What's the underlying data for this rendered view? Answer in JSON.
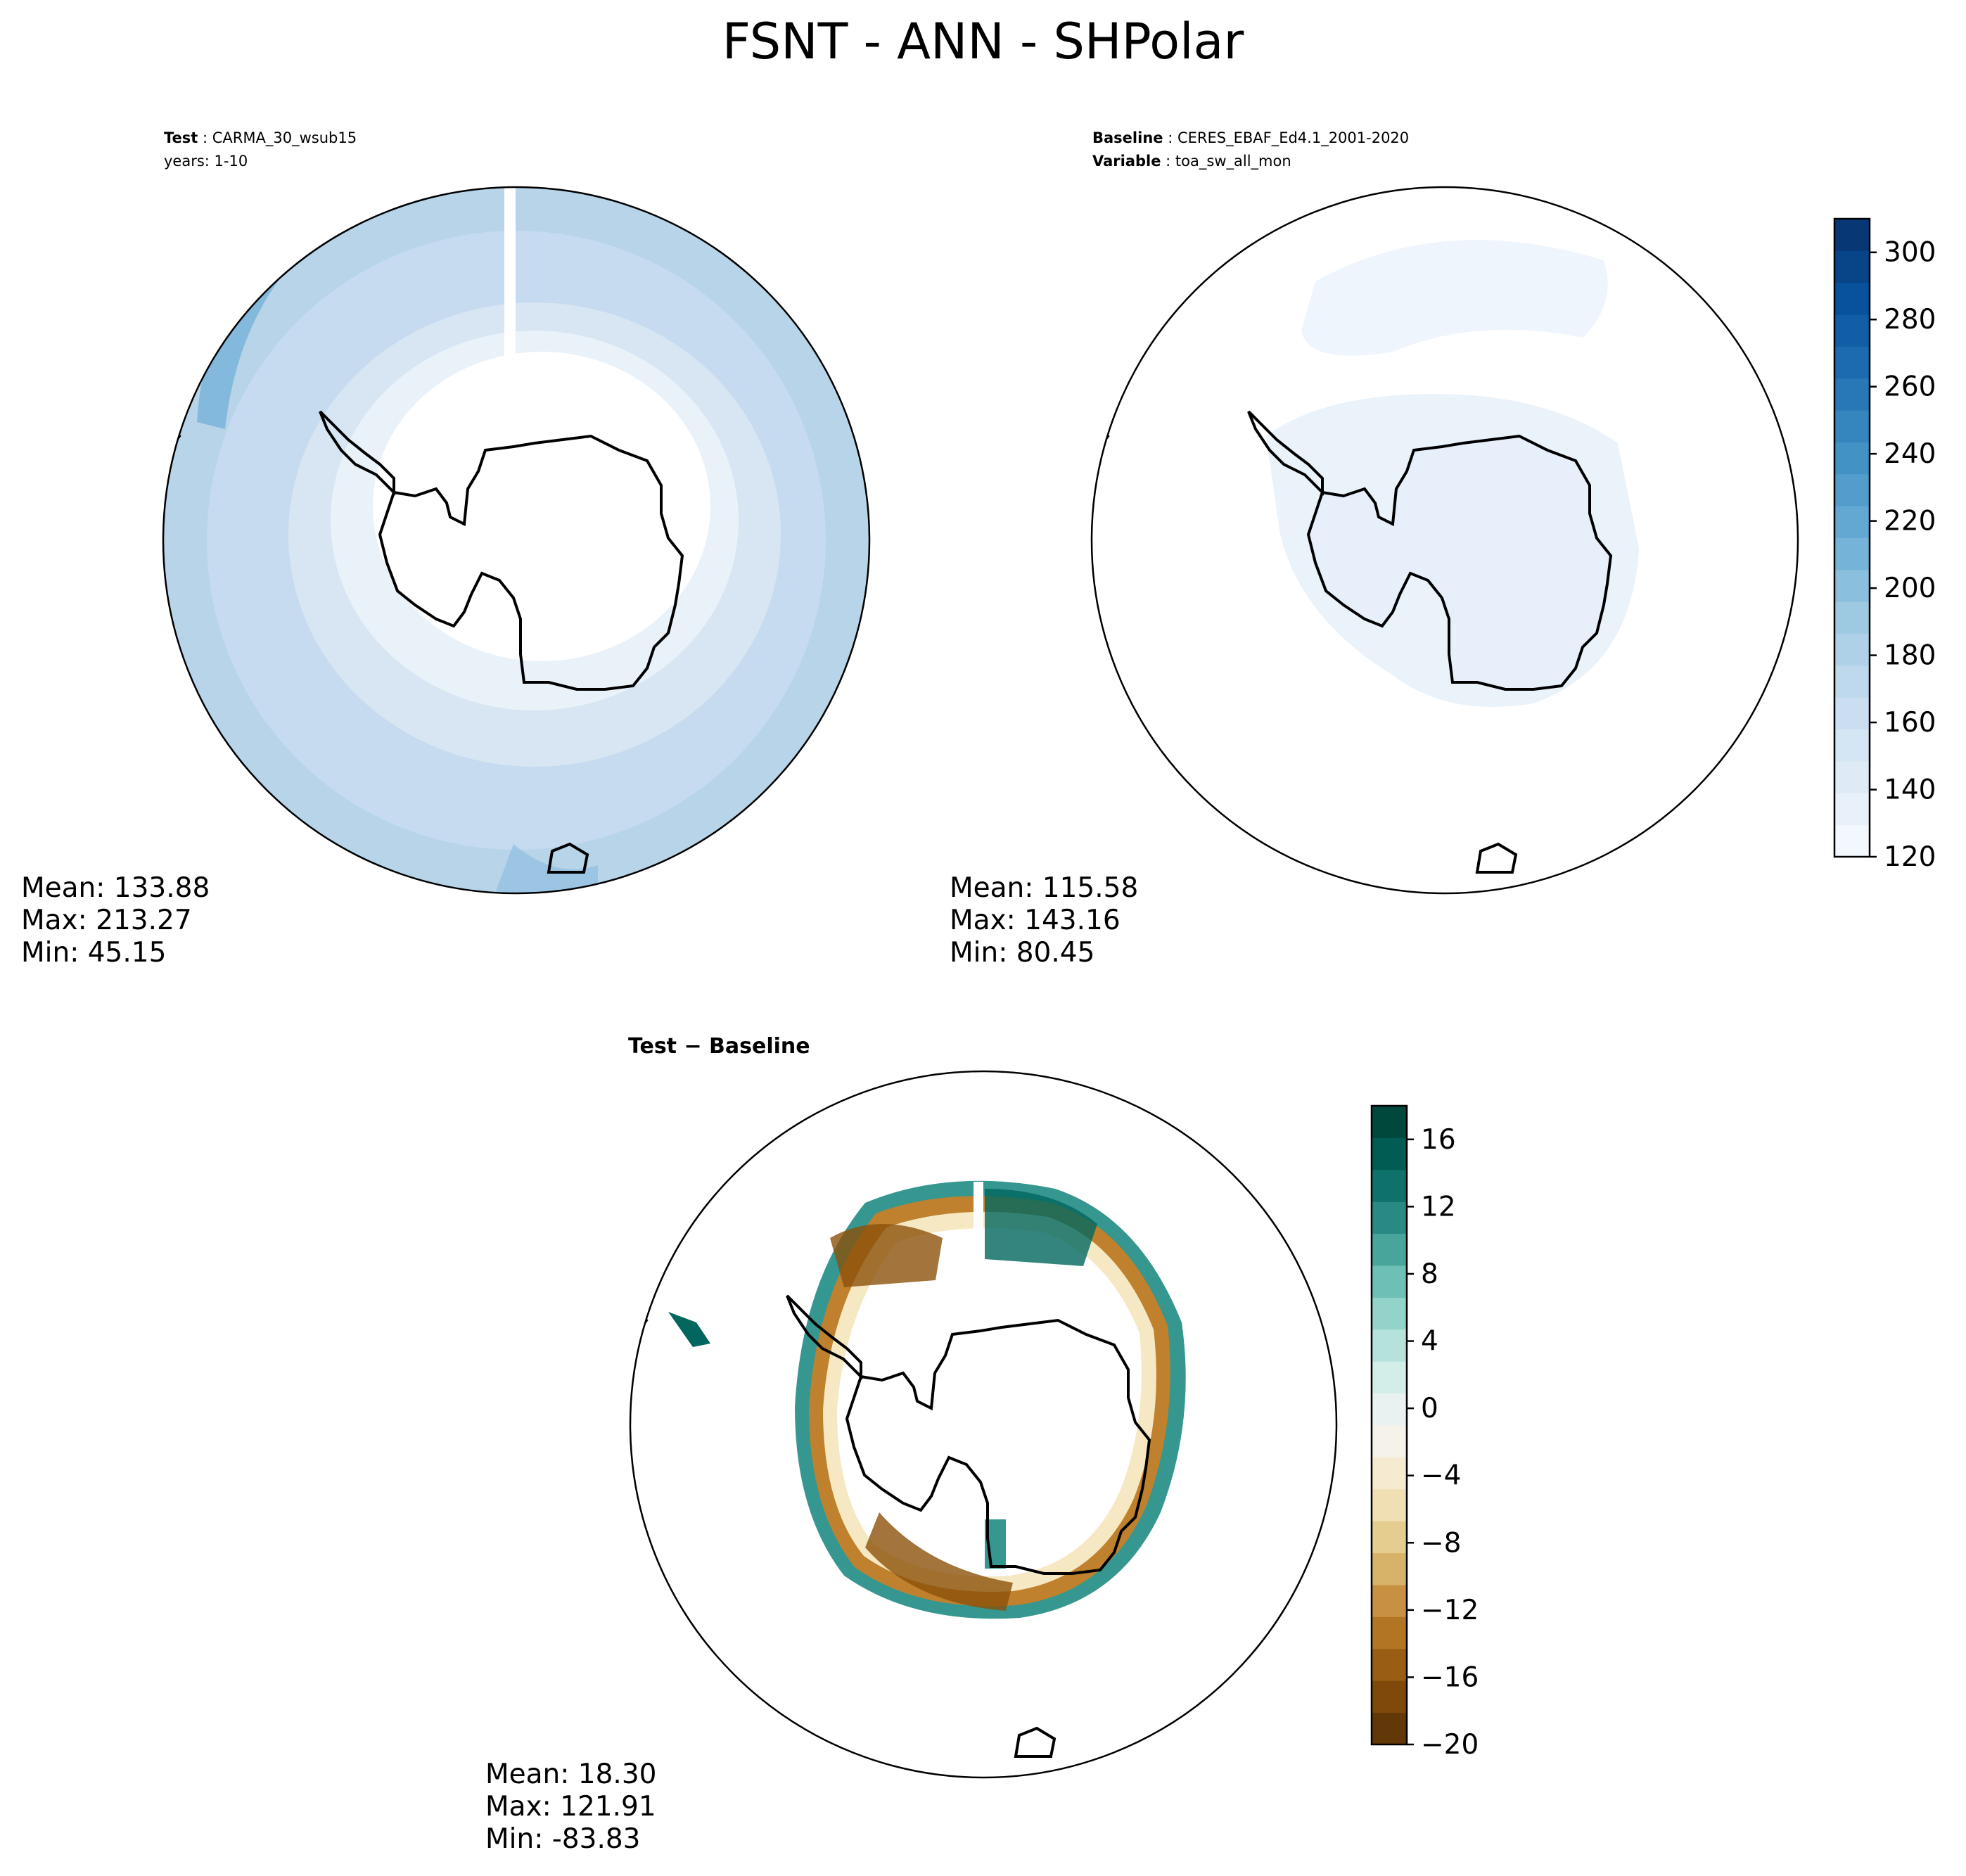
{
  "title": "FSNT - ANN - SHPolar",
  "panels": {
    "test": {
      "header_key": "Test",
      "header_value": "CARMA_30_wsub15",
      "header_line2": "years: 1-10",
      "mean": "Mean: 133.88",
      "max": "Max: 213.27",
      "min": "Min: 45.15"
    },
    "baseline": {
      "header_key": "Baseline",
      "header_value": "CERES_EBAF_Ed4.1_2001-2020",
      "header_key2": "Variable",
      "header_value2": "toa_sw_all_mon",
      "mean": "Mean: 115.58",
      "max": "Max: 143.16",
      "min": "Min: 80.45"
    },
    "diff": {
      "header": "Test − Baseline",
      "mean": "Mean: 18.30",
      "max": "Max: 121.91",
      "min": "Min: -83.83"
    }
  },
  "colorbar_top": {
    "colormap": "Blues",
    "range": [
      120,
      310
    ],
    "ticks": [
      "120",
      "140",
      "160",
      "180",
      "200",
      "220",
      "240",
      "260",
      "280",
      "300"
    ],
    "colors": [
      "#f7fbff",
      "#deebf7",
      "#c6dbef",
      "#9ecae1",
      "#6baed6",
      "#4292c6",
      "#2171b5",
      "#08519c",
      "#08306b"
    ]
  },
  "colorbar_bottom": {
    "colormap": "BrBG",
    "range": [
      -20,
      18
    ],
    "ticks": [
      "−20",
      "−16",
      "−12",
      "−8",
      "−4",
      "0",
      "4",
      "8",
      "12",
      "16"
    ],
    "colors": [
      "#543005",
      "#8c510a",
      "#bf812d",
      "#dfc27d",
      "#f6e8c3",
      "#f5f5f5",
      "#c7eae5",
      "#80cdc1",
      "#35978f",
      "#01665e",
      "#003c30"
    ]
  }
}
